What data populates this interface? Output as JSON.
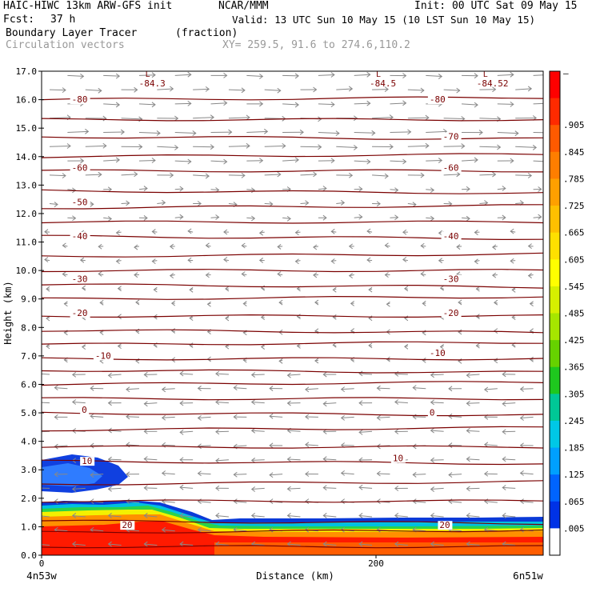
{
  "header": {
    "title_left": "HAIC-HIWC 13km ARW-GFS init",
    "title_mid": "NCAR/MMM",
    "init": "Init: 00 UTC Sat 09 May 15",
    "fcst_label": "Fcst:",
    "fcst_value": "37 h",
    "valid": "Valid: 13 UTC Sun 10 May 15 (10 LST Sun 10 May 15)",
    "field_name": "Boundary Layer Tracer",
    "field_units": "(fraction)",
    "vectors_label": "Circulation vectors",
    "xy_label": "XY= 259.5, 91.6 to 274.6,110.2"
  },
  "chart_data": {
    "type": "heatmap",
    "ylabel": "Height (km)",
    "xlabel": "Distance (km)",
    "ylim": [
      0,
      17
    ],
    "xlim": [
      0,
      300
    ],
    "y_ticks": [
      "0.0",
      "1.0",
      "2.0",
      "3.0",
      "4.0",
      "5.0",
      "6.0",
      "7.0",
      "8.0",
      "9.0",
      "10.0",
      "11.0",
      "12.0",
      "13.0",
      "14.0",
      "15.0",
      "16.0",
      "17.0"
    ],
    "x_ticks": [
      {
        "value": 0,
        "label": "0"
      },
      {
        "value": 200,
        "label": "200"
      }
    ],
    "x_endpoint_left": "4n53w",
    "x_endpoint_right": "6n51w",
    "colorbar_labels": [
      "–",
      ".905",
      ".845",
      ".785",
      ".725",
      ".665",
      ".605",
      ".545",
      ".485",
      ".425",
      ".365",
      ".305",
      ".245",
      ".185",
      ".125",
      ".065",
      ".005"
    ],
    "colorbar_colors": [
      "#ff0000",
      "#ff2a00",
      "#ff5a00",
      "#ff7e00",
      "#ffa000",
      "#ffc000",
      "#ffe000",
      "#ffff00",
      "#d6f000",
      "#a6e600",
      "#66d200",
      "#1ec81e",
      "#00c896",
      "#00c8e6",
      "#00a0ff",
      "#0064ff",
      "#0032e6",
      "#ffffff"
    ],
    "low_labels": [
      {
        "x": 62,
        "y": 16.75,
        "text": "L",
        "value": "-84.3"
      },
      {
        "x": 200,
        "y": 16.75,
        "text": "L",
        "value": "-84.5"
      },
      {
        "x": 264,
        "y": 16.75,
        "text": "L",
        "value": "-84.52"
      }
    ],
    "isotherm_labels": [
      {
        "x": 18,
        "y": 15.9,
        "text": "-80"
      },
      {
        "x": 232,
        "y": 15.9,
        "text": "-80"
      },
      {
        "x": 240,
        "y": 14.6,
        "text": "-70"
      },
      {
        "x": 18,
        "y": 13.5,
        "text": "-60"
      },
      {
        "x": 240,
        "y": 13.5,
        "text": "-60"
      },
      {
        "x": 18,
        "y": 12.3,
        "text": "-50"
      },
      {
        "x": 18,
        "y": 11.1,
        "text": "-40"
      },
      {
        "x": 240,
        "y": 11.1,
        "text": "-40"
      },
      {
        "x": 18,
        "y": 9.6,
        "text": "-30"
      },
      {
        "x": 240,
        "y": 9.6,
        "text": "-30"
      },
      {
        "x": 18,
        "y": 8.4,
        "text": "-20"
      },
      {
        "x": 240,
        "y": 8.4,
        "text": "-20"
      },
      {
        "x": 32,
        "y": 6.9,
        "text": "-10"
      },
      {
        "x": 232,
        "y": 7.0,
        "text": "-10"
      },
      {
        "x": 24,
        "y": 5.0,
        "text": "0"
      },
      {
        "x": 232,
        "y": 4.9,
        "text": "0"
      },
      {
        "x": 24,
        "y": 3.2,
        "text": "10"
      },
      {
        "x": 210,
        "y": 3.3,
        "text": "10"
      },
      {
        "x": 48,
        "y": 0.95,
        "text": "20"
      },
      {
        "x": 238,
        "y": 0.95,
        "text": "20"
      }
    ],
    "isotherm_heights": [
      16.0,
      15.3,
      14.7,
      14.0,
      13.5,
      12.8,
      12.2,
      11.7,
      11.2,
      10.5,
      10.0,
      9.5,
      9.0,
      8.4,
      7.9,
      7.4,
      6.9,
      6.5,
      6.0,
      5.5,
      5.0,
      4.4,
      3.8,
      3.3,
      2.5,
      1.9,
      1.2,
      0.8,
      0.3
    ]
  }
}
